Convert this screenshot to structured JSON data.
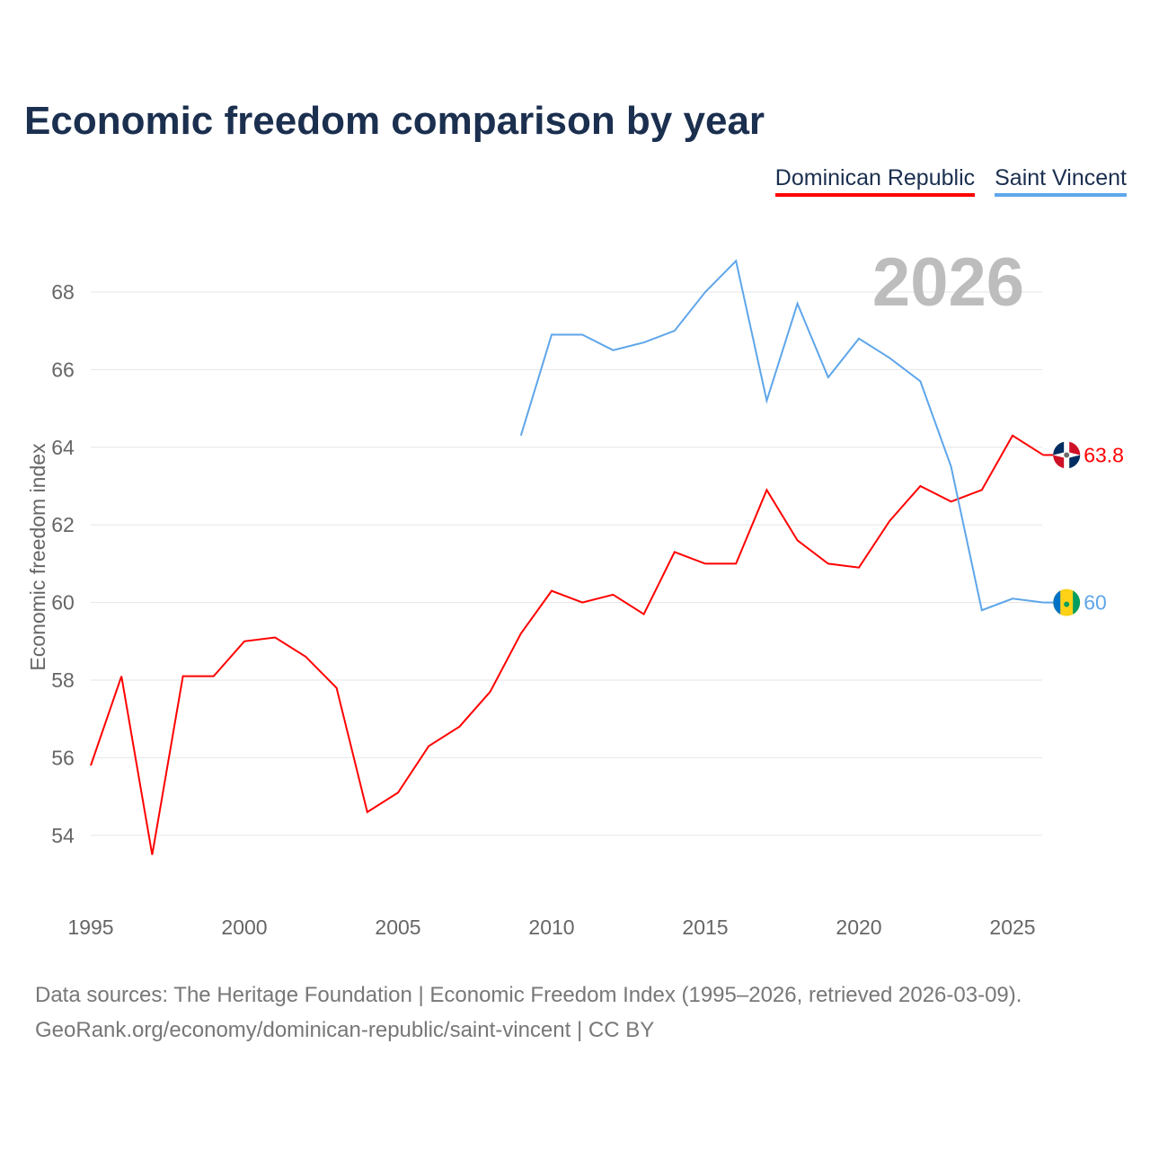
{
  "title": "Economic freedom comparison by year",
  "year_watermark": "2026",
  "source_line1": "Data sources: The Heritage Foundation | Economic Freedom Index (1995–2026, retrieved 2026-03-09).",
  "source_line2": "GeoRank.org/economy/dominican-republic/saint-vincent | CC BY",
  "chart_data": {
    "type": "line",
    "title": "Economic freedom comparison by year",
    "xlabel": "",
    "ylabel": "Economic freedom index",
    "xlim": [
      1995,
      2026
    ],
    "ylim": [
      52.5,
      69.5
    ],
    "xticks": [
      "1995",
      "2000",
      "2005",
      "2010",
      "2015",
      "2020",
      "2025"
    ],
    "yticks": [
      "54",
      "56",
      "58",
      "60",
      "62",
      "64",
      "66",
      "68"
    ],
    "grid": true,
    "legend_position": "top-right",
    "series": [
      {
        "name": "Dominican Republic",
        "color": "#ff0000",
        "end_label": "63.8",
        "x": [
          1995,
          1996,
          1997,
          1998,
          1999,
          2000,
          2001,
          2002,
          2003,
          2004,
          2005,
          2006,
          2007,
          2008,
          2009,
          2010,
          2011,
          2012,
          2013,
          2014,
          2015,
          2016,
          2017,
          2018,
          2019,
          2020,
          2021,
          2022,
          2023,
          2024,
          2025,
          2026
        ],
        "values": [
          55.8,
          58.1,
          53.5,
          58.1,
          58.1,
          59.0,
          59.1,
          58.6,
          57.8,
          54.6,
          55.1,
          56.3,
          56.8,
          57.7,
          59.2,
          60.3,
          60.0,
          60.2,
          59.7,
          61.3,
          61.0,
          61.0,
          62.9,
          61.6,
          61.0,
          60.9,
          62.1,
          63.0,
          62.6,
          62.9,
          64.3,
          63.8
        ]
      },
      {
        "name": "Saint Vincent",
        "color": "#5ea6ea",
        "end_label": "60",
        "x": [
          2009,
          2010,
          2011,
          2012,
          2013,
          2014,
          2015,
          2016,
          2017,
          2018,
          2019,
          2020,
          2021,
          2022,
          2023,
          2024,
          2025,
          2026
        ],
        "values": [
          64.3,
          66.9,
          66.9,
          66.5,
          66.7,
          67.0,
          68.0,
          68.8,
          65.2,
          67.7,
          65.8,
          66.8,
          66.3,
          65.7,
          63.5,
          59.8,
          60.1,
          60.0
        ]
      }
    ]
  }
}
